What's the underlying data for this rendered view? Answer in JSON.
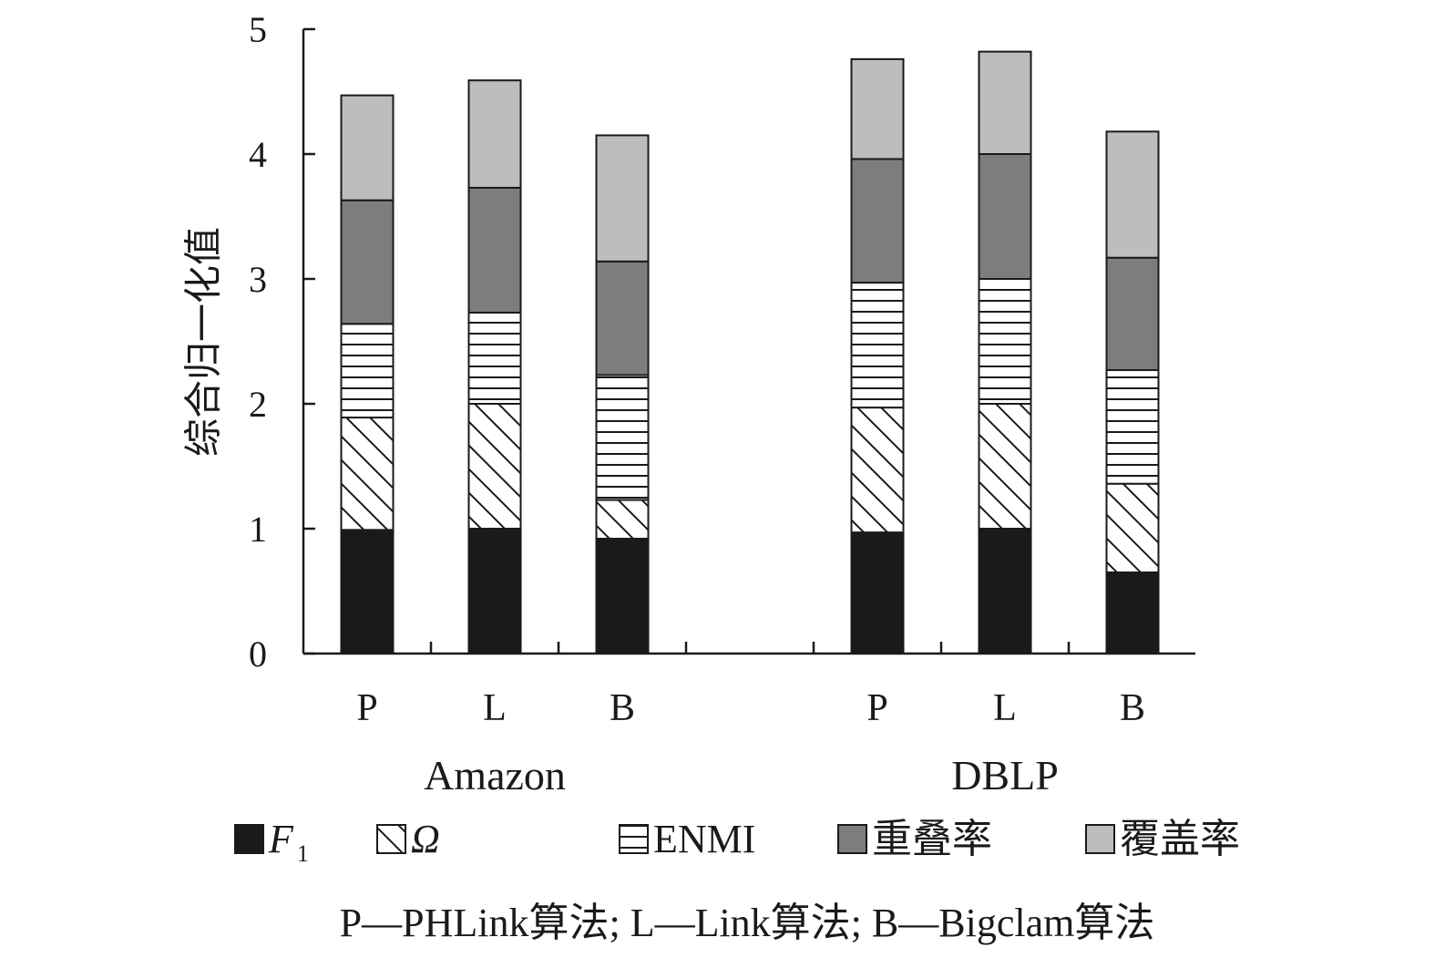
{
  "chart_data": {
    "type": "bar",
    "stacked": true,
    "ylabel": "综合归一化值",
    "ylim": [
      0,
      5
    ],
    "yticks": [
      "0",
      "1",
      "2",
      "3",
      "4",
      "5"
    ],
    "groups": [
      {
        "name": "Amazon",
        "categories": [
          "P",
          "L",
          "B"
        ]
      },
      {
        "name": "DBLP",
        "categories": [
          "P",
          "L",
          "B"
        ]
      }
    ],
    "series": [
      {
        "key": "f1",
        "name": "F",
        "sub": "1",
        "italic": true,
        "pattern": "solid-black",
        "color": "#1a1a1a",
        "values": [
          0.99,
          1.0,
          0.92,
          0.97,
          1.0,
          0.65
        ]
      },
      {
        "key": "omega",
        "name": "Ω",
        "italic": true,
        "pattern": "diagonal-hatch",
        "color": "#ffffff",
        "values": [
          0.9,
          1.0,
          0.31,
          1.0,
          1.0,
          0.71
        ]
      },
      {
        "key": "enmi",
        "name": "ENMI",
        "pattern": "horizontal-lines",
        "color": "#ffffff",
        "values": [
          0.75,
          0.73,
          1.0,
          1.0,
          1.0,
          0.91
        ]
      },
      {
        "key": "overlap",
        "name": "重叠率",
        "pattern": "dark-gray",
        "color": "#7d7d7d",
        "values": [
          0.99,
          1.0,
          0.91,
          0.99,
          1.0,
          0.9
        ]
      },
      {
        "key": "coverage",
        "name": "覆盖率",
        "pattern": "light-gray",
        "color": "#bdbdbd",
        "values": [
          0.84,
          0.86,
          1.01,
          0.8,
          0.82,
          1.01
        ]
      }
    ],
    "legend_position": "bottom",
    "grid": false,
    "footnote": "P—PHLink算法; L—Link算法; B—Bigclam算法"
  }
}
